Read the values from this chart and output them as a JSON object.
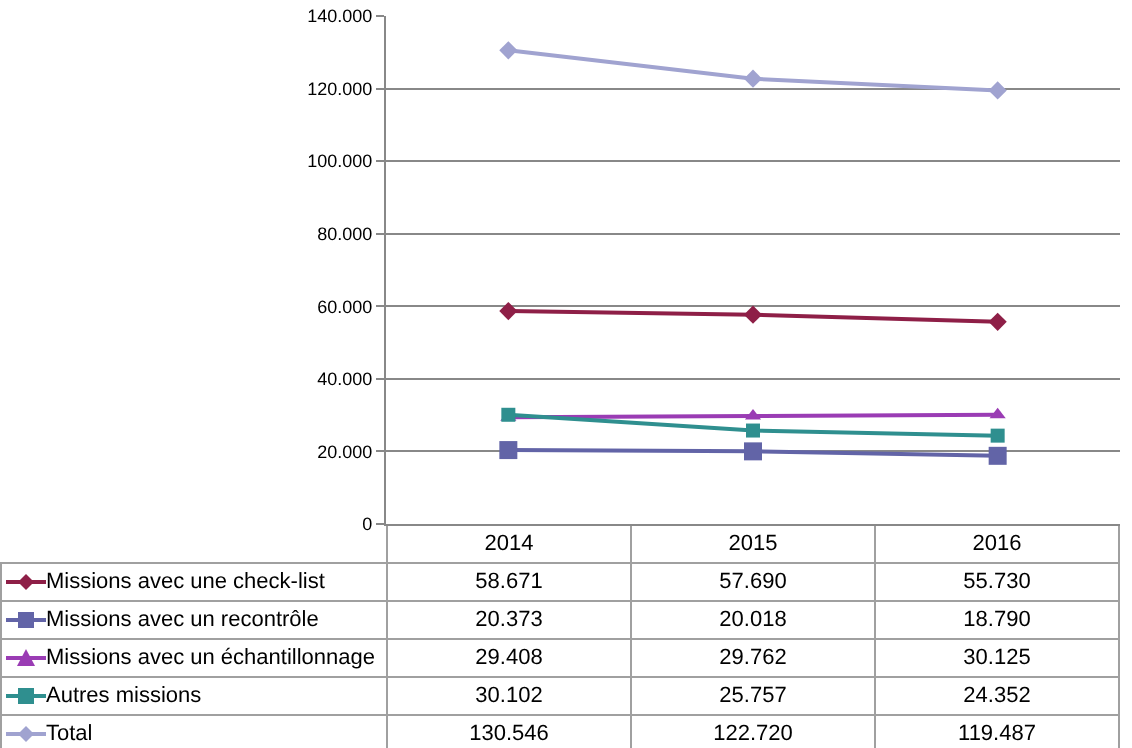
{
  "chart_data": {
    "type": "line",
    "categories": [
      "2014",
      "2015",
      "2016"
    ],
    "ylim": [
      0,
      140000
    ],
    "yticks": [
      {
        "value": 0,
        "label": "0"
      },
      {
        "value": 20000,
        "label": "20.000"
      },
      {
        "value": 40000,
        "label": "40.000"
      },
      {
        "value": 60000,
        "label": "60.000"
      },
      {
        "value": 80000,
        "label": "80.000"
      },
      {
        "value": 100000,
        "label": "100.000"
      },
      {
        "value": 120000,
        "label": "120.000"
      },
      {
        "value": 140000,
        "label": "140.000"
      }
    ],
    "grid": "y",
    "legend": "bottom",
    "series": [
      {
        "name": "Missions avec une check-list",
        "color": "#8e1f47",
        "marker": "diamond",
        "values": [
          58671,
          57690,
          55730
        ],
        "value_labels": [
          "58.671",
          "57.690",
          "55.730"
        ]
      },
      {
        "name": "Missions avec un recontrôle",
        "color": "#6264a7",
        "marker": "square",
        "values": [
          20373,
          20018,
          18790
        ],
        "value_labels": [
          "20.373",
          "20.018",
          "18.790"
        ]
      },
      {
        "name": "Missions avec un échantillonnage",
        "color": "#9a3cb4",
        "marker": "triangle",
        "values": [
          29408,
          29762,
          30125
        ],
        "value_labels": [
          "29.408",
          "29.762",
          "30.125"
        ]
      },
      {
        "name": "Autres missions",
        "color": "#2f8f8f",
        "marker": "square",
        "values": [
          30102,
          25757,
          24352
        ],
        "value_labels": [
          "30.102",
          "25.757",
          "24.352"
        ]
      },
      {
        "name": "Total",
        "color": "#a0a3d0",
        "marker": "diamond",
        "values": [
          130546,
          122720,
          119487
        ],
        "value_labels": [
          "130.546",
          "122.720",
          "119.487"
        ]
      }
    ]
  }
}
